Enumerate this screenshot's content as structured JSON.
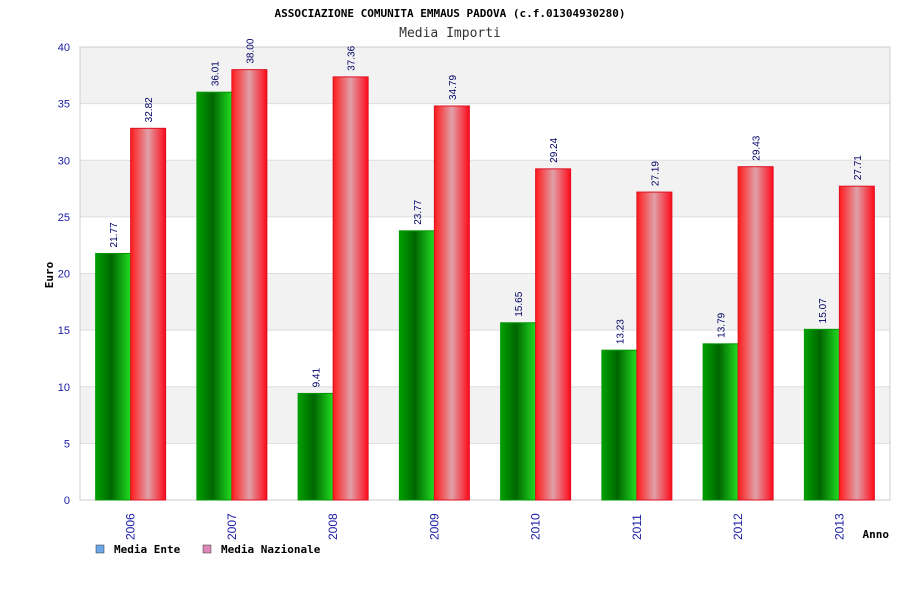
{
  "chart_data": {
    "type": "bar",
    "title": "ASSOCIAZIONE COMUNITA EMMAUS PADOVA (c.f.01304930280)",
    "subtitle": "Media Importi",
    "xlabel": "Anno",
    "ylabel": "Euro",
    "ylim": [
      0,
      40
    ],
    "yticks": [
      0,
      5,
      10,
      15,
      20,
      25,
      30,
      35,
      40
    ],
    "grid": true,
    "legend_position": "bottom-left",
    "categories": [
      "2006",
      "2007",
      "2008",
      "2009",
      "2010",
      "2011",
      "2012",
      "2013"
    ],
    "series": [
      {
        "name": "Media Ente",
        "values": [
          21.77,
          36.01,
          9.41,
          23.77,
          15.65,
          13.23,
          13.79,
          15.07
        ],
        "labels": [
          "21.77",
          "36.01",
          "9.41",
          "23.77",
          "15.65",
          "13.23",
          "13.79",
          "15.07"
        ],
        "color": "#00bb00",
        "legend_color": "#6aa6e8"
      },
      {
        "name": "Media Nazionale",
        "values": [
          32.82,
          38.0,
          37.36,
          34.79,
          29.24,
          27.19,
          29.43,
          27.71
        ],
        "labels": [
          "32.82",
          "38.00",
          "37.36",
          "34.79",
          "29.24",
          "27.19",
          "29.43",
          "27.71"
        ],
        "color": "#ee1122",
        "legend_color": "#dd88bb"
      }
    ]
  },
  "colors": {
    "tick_text": "#1a1aa6",
    "label_text": "#000066",
    "grid_band": "#f2f2f2",
    "grid_line": "#dddddd"
  }
}
